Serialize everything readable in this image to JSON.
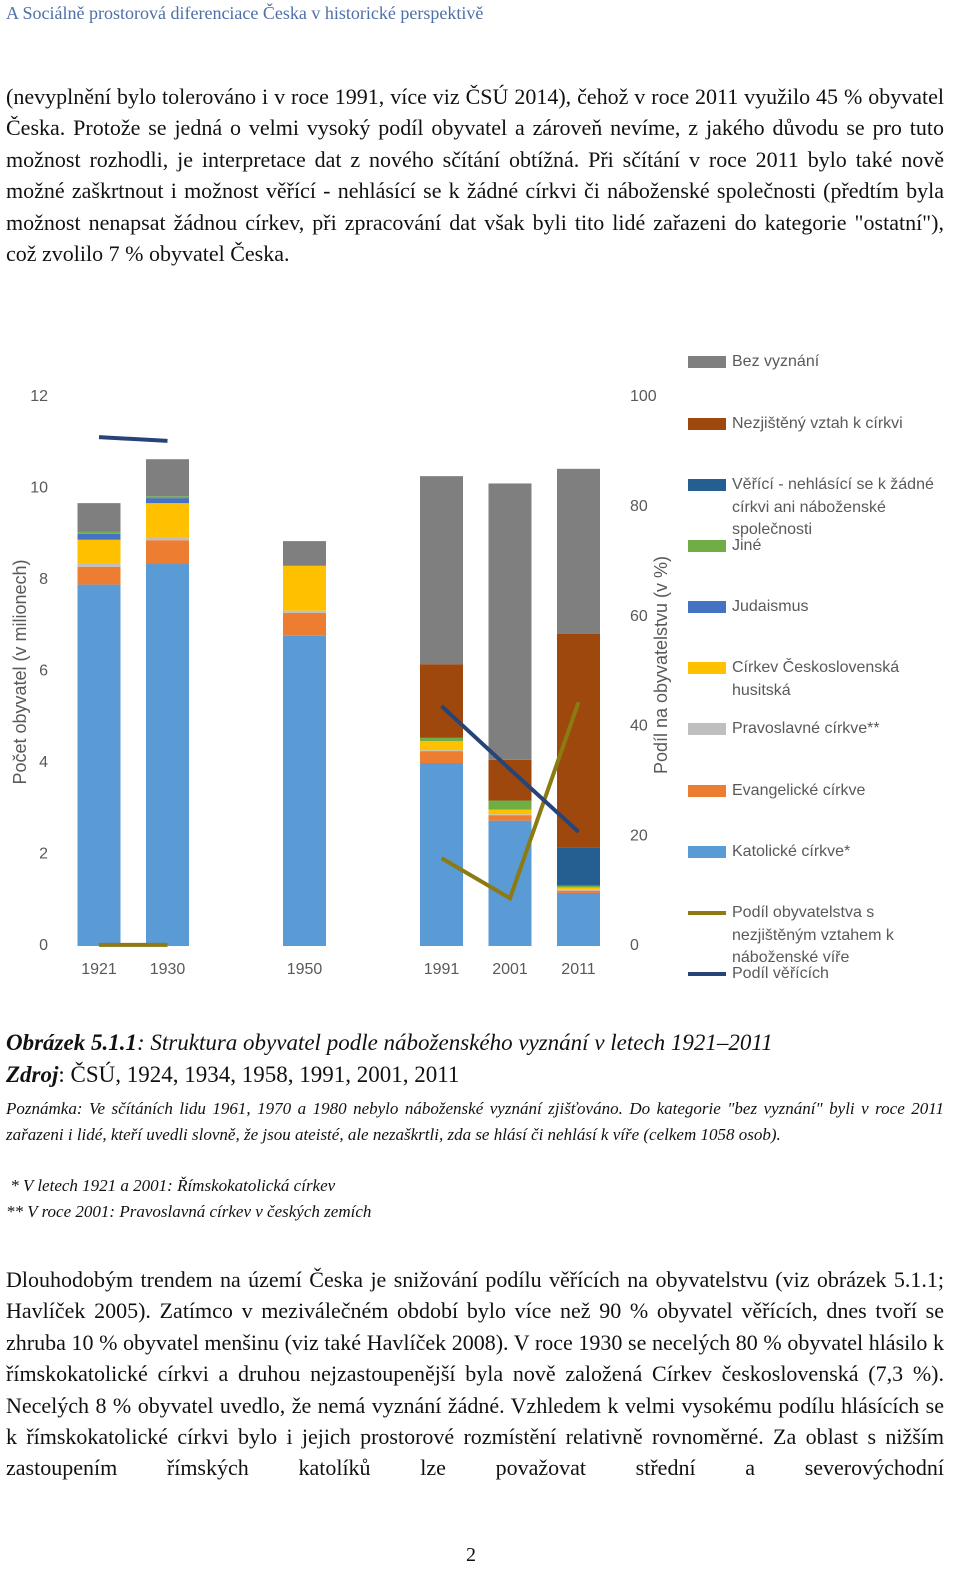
{
  "header": {
    "title": "A Sociálně prostorová diferenciace Česka v historické perspektivě"
  },
  "intro": "(nevyplnění bylo tolerováno i v roce 1991, více viz ČSÚ 2014), čehož v roce 2011 využilo 45 % obyvatel Česka. Protože se jedná o velmi vysoký podíl obyvatel a zároveň nevíme, z jakého důvodu se pro tuto možnost rozhodli, je interpretace dat z nového sčítání obtížná. Při sčítání v roce 2011 bylo také nově možné zaškrtnout i možnost věřící - nehlásící se k žádné církvi či náboženské společnosti (předtím byla možnost nenapsat žádnou církev, při zpracování dat však byli tito lidé zařazeni do kategorie \"ostatní\"), což zvolilo 7 % obyvatel Česka.",
  "chart_data": {
    "type": "bar",
    "stacked": true,
    "ylabel": "Počet obyvatel (v milionech)",
    "y2label": "Podíl na obyvatelstvu (v %)",
    "categories": [
      "1921",
      "1930",
      null,
      "1950",
      null,
      "1991",
      "2001",
      "2011"
    ],
    "ylim": [
      0,
      12
    ],
    "yticks": [
      0,
      2,
      4,
      6,
      8,
      10,
      12
    ],
    "y2lim": [
      0,
      100
    ],
    "y2ticks": [
      0,
      20,
      40,
      60,
      80,
      100
    ],
    "series": [
      {
        "name": "Katolické církve*",
        "color": "#5b9bd5",
        "values": [
          7.9,
          8.37,
          null,
          6.78,
          null,
          4.0,
          2.74,
          1.16
        ]
      },
      {
        "name": "Evangelické církve",
        "color": "#ed7d31",
        "values": [
          0.39,
          0.5,
          null,
          0.5,
          null,
          0.26,
          0.12,
          0.05
        ]
      },
      {
        "name": "Pravoslavné církve**",
        "color": "#bfbfbf",
        "values": [
          0.07,
          0.07,
          null,
          0.05,
          null,
          0.02,
          0.02,
          0.03
        ]
      },
      {
        "name": "Církev Československá husitská",
        "color": "#ffc000",
        "values": [
          0.52,
          0.74,
          null,
          0.98,
          null,
          0.2,
          0.1,
          0.04
        ]
      },
      {
        "name": "Judaismus",
        "color": "#4472c4",
        "values": [
          0.13,
          0.11,
          null,
          null,
          null,
          null,
          null,
          null
        ]
      },
      {
        "name": "Jiné",
        "color": "#70ad47",
        "values": [
          0.05,
          0.04,
          null,
          null,
          null,
          0.07,
          0.2,
          0.04
        ]
      },
      {
        "name": "Věřící - nehlásící se k žádné církvi ani náboženské společnosti",
        "color": "#255e91",
        "values": [
          null,
          null,
          null,
          null,
          null,
          null,
          null,
          0.84
        ]
      },
      {
        "name": "Nezjištěný vztah k církvi",
        "color": "#9e480e",
        "values": [
          null,
          null,
          null,
          null,
          null,
          1.61,
          0.89,
          4.66
        ]
      },
      {
        "name": "Bez vyznání",
        "color": "#7f7f7f",
        "values": [
          0.62,
          0.81,
          null,
          0.54,
          null,
          4.11,
          6.04,
          3.61
        ]
      },
      {
        "name": "Podíl obyvatelstva s nezjištěným vztahem k náboženské víře",
        "type": "line",
        "axis": "y2",
        "color": "#8c7a12",
        "values": [
          0.2,
          0.2,
          null,
          null,
          null,
          16.0,
          8.7,
          44.4
        ]
      },
      {
        "name": "Podíl věřících",
        "type": "line",
        "axis": "y2",
        "color": "#264478",
        "values": [
          92.7,
          92.0,
          null,
          null,
          null,
          43.7,
          32.2,
          20.8
        ]
      }
    ]
  },
  "caption": {
    "label": "Obrázek 5.1.1",
    "text": ": Struktura obyvatel podle náboženského vyznání v letech 1921–2011"
  },
  "source": {
    "label": "Zdroj",
    "text": ": ČSÚ, 1924, 1934, 1958, 1991, 2001, 2011"
  },
  "notes": [
    "Poznámka: Ve sčítáních lidu 1961, 1970 a 1980 nebylo náboženské vyznání zjišťováno. Do kategorie \"bez vyznání\" byli v roce 2011 zařazeni i lidé, kteří uvedli slovně, že jsou ateisté, ale nezaškrtli, zda se hlásí či nehlásí k víře (celkem 1058 osob).",
    " * V letech 1921 a 2001: Římskokatolická církev",
    "** V roce 2001: Pravoslavná církev v českých zemích"
  ],
  "body": "Dlouhodobým trendem na území Česka je snižování podílu věřících na obyvatelstvu (viz obrázek 5.1.1; Havlíček 2005). Zatímco v meziválečném období bylo více než 90 % obyvatel věřících, dnes tvoří se zhruba 10 % obyvatel menšinu (viz také Havlíček 2008). V roce 1930 se necelých 80 % obyvatel hlásilo k římskokatolické církvi a druhou nejzastoupenější byla nově založená Církev československá (7,3 %). Necelých 8 % obyvatel uvedlo, že nemá vyznání žádné. Vzhledem k velmi vysokému podílu hlásících se k římskokatolické církvi bylo i jejich prostorové rozmístění relativně rovnoměrné. Za oblast s nižším zastoupením římských katolíků lze považovat střední a severovýchodní",
  "page_number": "2"
}
